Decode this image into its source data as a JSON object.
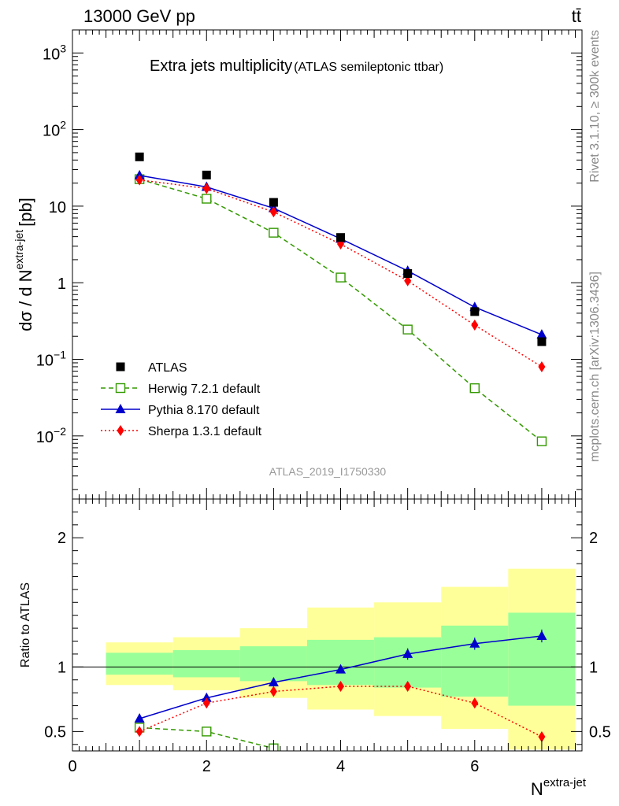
{
  "header": {
    "energy": "13000 GeV pp",
    "process": "tt̄",
    "rivet": "Rivet 3.1.10, ≥ 300k events",
    "source": "mcplots.cern.ch [arXiv:1306.3436]"
  },
  "chart_data": {
    "type": "line",
    "title": "Extra jets multiplicity",
    "subtitle": "(ATLAS semileptonic ttbar)",
    "analysis_label": "ATLAS_2019_I1750330",
    "ylabel_main": "dσ / d N",
    "ylabel_sup": "extra-jet",
    "ylabel_unit": "[pb]",
    "ylabel_ratio": "Ratio to ATLAS",
    "xlabel": "N",
    "xlabel_sup": "extra-jet",
    "log_y": true,
    "xlim": [
      0,
      7.6
    ],
    "ylim_main": [
      0.0015,
      2000
    ],
    "ylim_ratio": [
      0.35,
      2.3
    ],
    "x": [
      1,
      2,
      3,
      4,
      5,
      6,
      7
    ],
    "x_ticks": [
      "0",
      "2",
      "4",
      "6"
    ],
    "y_ticks_main": [
      {
        "base": "10",
        "exp": "3"
      },
      {
        "base": "10",
        "exp": "2"
      },
      {
        "base": "10",
        "exp": ""
      },
      {
        "base": "1",
        "exp": ""
      },
      {
        "base": "10",
        "exp": "−1"
      },
      {
        "base": "10",
        "exp": "−2"
      }
    ],
    "y_ticks_ratio": [
      "2",
      "1",
      "0.5"
    ],
    "data": {
      "name": "ATLAS",
      "values": [
        44,
        25.5,
        11.2,
        3.9,
        1.32,
        0.42,
        0.17
      ]
    },
    "series": [
      {
        "name": "Herwig 7.2.1 default",
        "color": "#339900",
        "marker": "open-square",
        "line": "dashed",
        "values": [
          22.5,
          12.5,
          4.5,
          1.17,
          0.245,
          0.042,
          0.0085
        ],
        "ratio": [
          0.53,
          0.5,
          0.37,
          null,
          null,
          null,
          null
        ]
      },
      {
        "name": "Pythia 8.170 default",
        "color": "#0000cc",
        "marker": "triangle",
        "line": "solid",
        "values": [
          25.2,
          17.8,
          9.4,
          3.75,
          1.43,
          0.48,
          0.21
        ],
        "ratio": [
          0.6,
          0.76,
          0.88,
          0.98,
          1.1,
          1.18,
          1.24
        ]
      },
      {
        "name": "Sherpa 1.3.1 default",
        "color": "#ff0000",
        "marker": "diamond",
        "line": "dotted",
        "values": [
          22.0,
          17.0,
          8.4,
          3.2,
          1.06,
          0.28,
          0.08
        ],
        "ratio": [
          0.5,
          0.72,
          0.81,
          0.85,
          0.85,
          0.72,
          0.46
        ]
      }
    ],
    "ratio_bands": {
      "edges": [
        0.5,
        1.5,
        2.5,
        3.5,
        4.5,
        5.5,
        6.5,
        7.5
      ],
      "green_lo": [
        0.94,
        0.92,
        0.89,
        0.86,
        0.84,
        0.77,
        0.7
      ],
      "green_hi": [
        1.11,
        1.13,
        1.16,
        1.21,
        1.23,
        1.32,
        1.42
      ],
      "yellow_lo": [
        0.86,
        0.82,
        0.76,
        0.67,
        0.62,
        0.52,
        0.36
      ],
      "yellow_hi": [
        1.19,
        1.23,
        1.3,
        1.46,
        1.5,
        1.62,
        1.76
      ]
    }
  }
}
